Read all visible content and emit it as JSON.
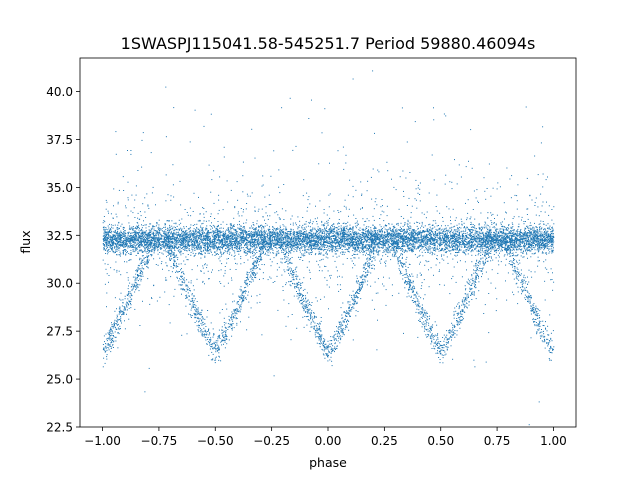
{
  "chart_data": {
    "type": "scatter",
    "title": "1SWASPJ115041.58-545251.7 Period 59880.46094s",
    "xlabel": "phase",
    "ylabel": "flux",
    "xlim": [
      -1.1,
      1.1
    ],
    "ylim": [
      22.5,
      41.75
    ],
    "xticks": [
      -1.0,
      -0.75,
      -0.5,
      -0.25,
      0.0,
      0.25,
      0.5,
      0.75,
      1.0
    ],
    "xtick_labels": [
      "−1.00",
      "−0.75",
      "−0.50",
      "−0.25",
      "0.00",
      "0.25",
      "0.50",
      "0.75",
      "1.00"
    ],
    "yticks": [
      22.5,
      25.0,
      27.5,
      30.0,
      32.5,
      35.0,
      37.5,
      40.0
    ],
    "ytick_labels": [
      "22.5",
      "25.0",
      "27.5",
      "30.0",
      "32.5",
      "35.0",
      "37.5",
      "40.0"
    ],
    "grid": false,
    "marker_color": "#1f77b4",
    "series": [
      {
        "baseline_flux": 32.3,
        "baseline_scatter": 0.35,
        "eclipse_depth_flux": 26.5,
        "eclipse_phases": [
          -1.0,
          -0.5,
          0.0,
          0.5,
          1.0
        ],
        "eclipse_half_width_phase": 0.22,
        "phase_range": [
          -1.0,
          1.0
        ]
      }
    ]
  }
}
